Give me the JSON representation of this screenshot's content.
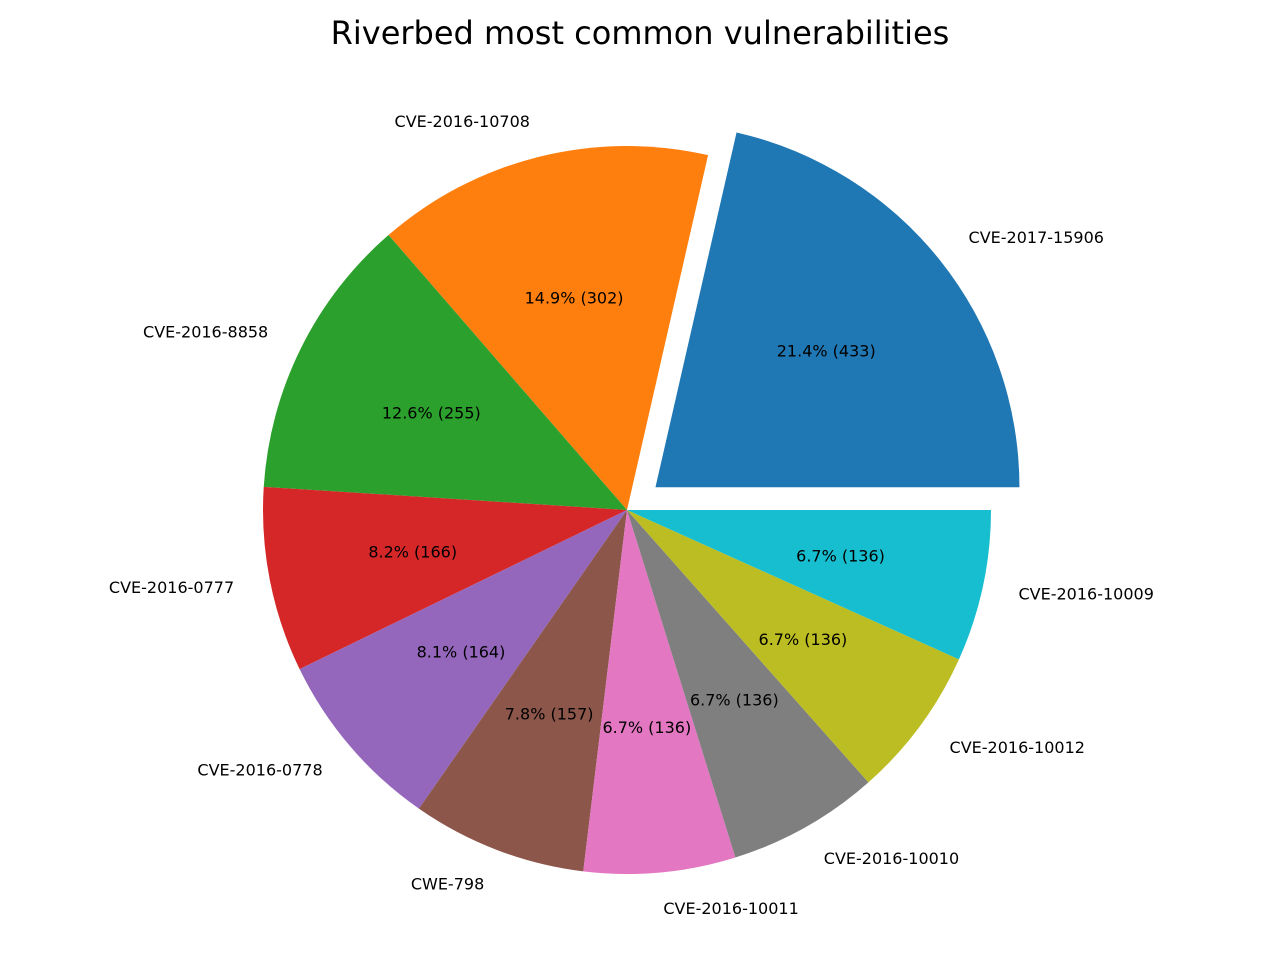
{
  "chart_data": {
    "type": "pie",
    "title": "Riverbed most common vulnerabilities",
    "labels": [
      "CVE-2017-15906",
      "CVE-2016-10708",
      "CVE-2016-8858",
      "CVE-2016-0777",
      "CVE-2016-0778",
      "CWE-798",
      "CVE-2016-10011",
      "CVE-2016-10010",
      "CVE-2016-10012",
      "CVE-2016-10009"
    ],
    "values": [
      433,
      302,
      255,
      166,
      164,
      157,
      136,
      136,
      136,
      136
    ],
    "pct_labels": [
      "21.4% (433)",
      "14.9% (302)",
      "12.6% (255)",
      "8.2% (166)",
      "8.1% (164)",
      "7.8% (157)",
      "6.7% (136)",
      "6.7% (136)",
      "6.7% (136)",
      "6.7% (136)"
    ],
    "colors": [
      "#1f77b4",
      "#ff7f0e",
      "#2ca02c",
      "#d62728",
      "#9467bd",
      "#8c564b",
      "#e377c2",
      "#7f7f7f",
      "#bcbd22",
      "#17becf"
    ],
    "explode": [
      0.1,
      0,
      0,
      0,
      0,
      0,
      0,
      0,
      0,
      0
    ],
    "start_angle_deg": 0,
    "direction": "counterclockwise"
  }
}
